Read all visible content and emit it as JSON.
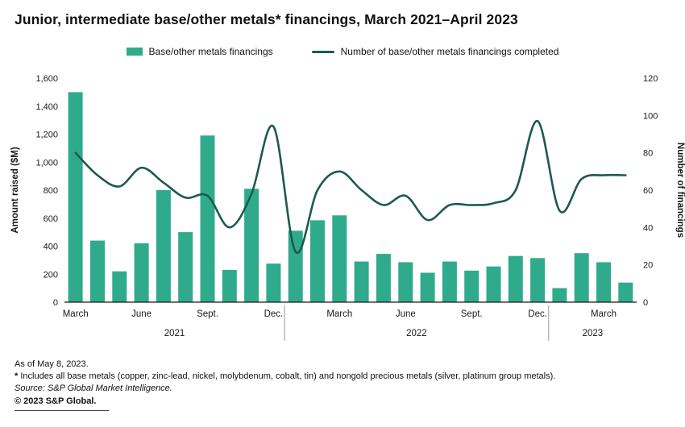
{
  "colors": {
    "bar": "#2fab8b",
    "line": "#1b5a4f",
    "axis": "#1a1a1a",
    "separator": "#999999"
  },
  "chart_data": {
    "type": "bar+line",
    "title": "Junior, intermediate base/other metals* financings, March 2021–April 2023",
    "categories": [
      "March 2021",
      "April 2021",
      "May 2021",
      "June 2021",
      "July 2021",
      "August 2021",
      "September 2021",
      "October 2021",
      "November 2021",
      "December 2021",
      "January 2022",
      "February 2022",
      "March 2022",
      "April 2022",
      "May 2022",
      "June 2022",
      "July 2022",
      "August 2022",
      "September 2022",
      "October 2022",
      "November 2022",
      "December 2022",
      "January 2023",
      "February 2023",
      "March 2023",
      "April 2023"
    ],
    "series": [
      {
        "name": "Base/other metals financings",
        "type": "bar",
        "axis": "left",
        "values": [
          1500,
          440,
          220,
          420,
          800,
          500,
          1190,
          230,
          810,
          275,
          510,
          585,
          620,
          290,
          345,
          285,
          210,
          290,
          225,
          255,
          330,
          315,
          100,
          350,
          285,
          140
        ]
      },
      {
        "name": "Number of base/other metals financings completed",
        "type": "line",
        "axis": "right",
        "values": [
          80,
          68,
          62,
          72,
          64,
          56,
          57,
          40,
          58,
          94,
          27,
          60,
          70,
          60,
          52,
          57,
          44,
          52,
          52,
          53,
          60,
          97,
          49,
          66,
          68,
          68
        ]
      }
    ],
    "left_axis": {
      "label": "Amount raised ($M)",
      "min": 0,
      "max": 1600,
      "step": 200
    },
    "right_axis": {
      "label": "Number of financings",
      "min": 0,
      "max": 120,
      "step": 20
    },
    "x_ticks": [
      {
        "i": 0,
        "label": "March"
      },
      {
        "i": 3,
        "label": "June"
      },
      {
        "i": 6,
        "label": "Sept."
      },
      {
        "i": 9,
        "label": "Dec."
      },
      {
        "i": 12,
        "label": "March"
      },
      {
        "i": 15,
        "label": "June"
      },
      {
        "i": 18,
        "label": "Sept."
      },
      {
        "i": 21,
        "label": "Dec."
      },
      {
        "i": 24,
        "label": "March"
      }
    ],
    "year_groups": [
      {
        "label": "2021",
        "start": 0,
        "end": 9
      },
      {
        "label": "2022",
        "start": 10,
        "end": 21
      },
      {
        "label": "2023",
        "start": 22,
        "end": 25
      }
    ],
    "grid": false,
    "legend_position": "top-center"
  },
  "footer": {
    "as_of": "As of May 8, 2023.",
    "footnote_marker": "*",
    "footnote": " Includes all base metals (copper, zinc-lead, nickel, molybdenum, cobalt, tin) and nongold precious metals (silver, platinum group metals).",
    "source": "Source: S&P Global Market Intelligence.",
    "copyright": "© 2023 S&P Global."
  }
}
